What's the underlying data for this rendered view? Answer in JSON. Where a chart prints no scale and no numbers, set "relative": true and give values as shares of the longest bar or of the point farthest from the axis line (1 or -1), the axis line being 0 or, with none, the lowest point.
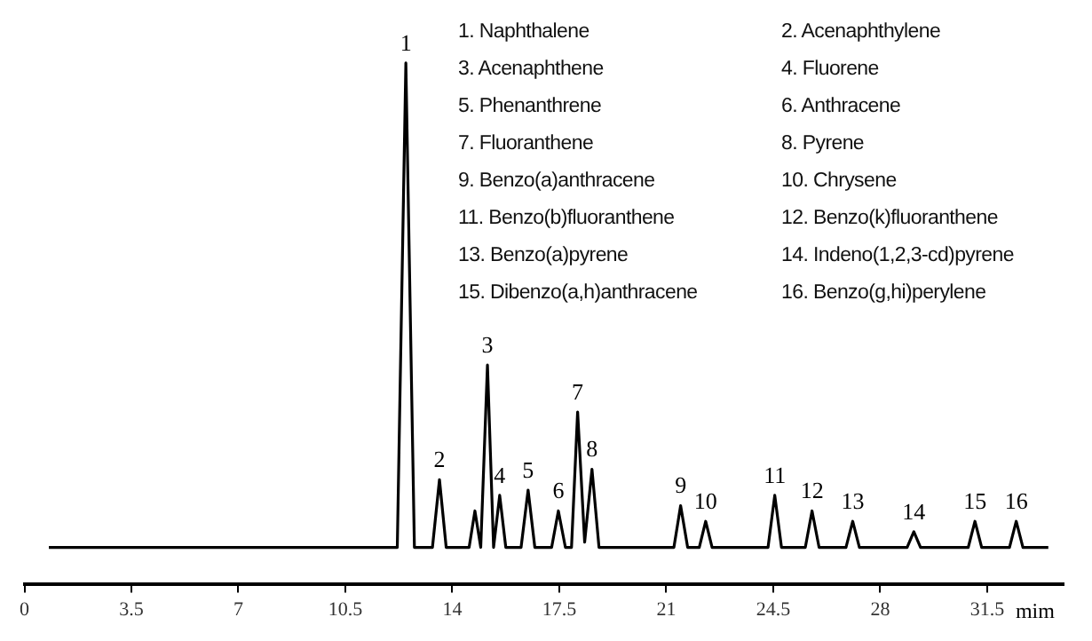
{
  "chart_data": {
    "type": "line",
    "relative": true,
    "xlabel": "mim",
    "xlim": [
      0,
      34
    ],
    "xticks": [
      0,
      3.5,
      7,
      10.5,
      14,
      17.5,
      21,
      24.5,
      28,
      31.5
    ],
    "grid": false,
    "legend": false,
    "marker": "none",
    "line_style": "solid",
    "series": [
      {
        "color": "#000000",
        "x": [
          0.8,
          12.2,
          12.48,
          12.76,
          13.35,
          13.58,
          13.8,
          14.55,
          14.74,
          14.93,
          15.15,
          15.35,
          15.55,
          15.75,
          16.25,
          16.48,
          16.7,
          17.25,
          17.47,
          17.7,
          17.9,
          18.1,
          18.33,
          18.57,
          18.8,
          21.25,
          21.47,
          21.7,
          22.08,
          22.29,
          22.5,
          24.33,
          24.55,
          24.77,
          25.55,
          25.77,
          26.0,
          26.88,
          27.1,
          27.32,
          28.88,
          29.1,
          29.32,
          30.88,
          31.1,
          31.32,
          32.23,
          32.45,
          32.67,
          33.5
        ],
        "values": [
          0.07,
          0.07,
          1.0,
          0.07,
          0.07,
          0.2,
          0.07,
          0.07,
          0.14,
          0.07,
          0.42,
          0.07,
          0.17,
          0.07,
          0.07,
          0.18,
          0.07,
          0.07,
          0.14,
          0.07,
          0.07,
          0.33,
          0.08,
          0.22,
          0.07,
          0.07,
          0.15,
          0.07,
          0.07,
          0.12,
          0.07,
          0.07,
          0.17,
          0.07,
          0.07,
          0.14,
          0.07,
          0.07,
          0.12,
          0.07,
          0.07,
          0.1,
          0.07,
          0.07,
          0.12,
          0.07,
          0.07,
          0.12,
          0.07,
          0.07
        ]
      }
    ],
    "annotations": [
      {
        "text": "1",
        "x": 12.48,
        "y": 1.0
      },
      {
        "text": "2",
        "x": 13.58,
        "y": 0.2
      },
      {
        "text": "3",
        "x": 15.15,
        "y": 0.42
      },
      {
        "text": "4",
        "x": 15.55,
        "y": 0.17
      },
      {
        "text": "5",
        "x": 16.48,
        "y": 0.18
      },
      {
        "text": "6",
        "x": 17.47,
        "y": 0.14
      },
      {
        "text": "7",
        "x": 18.1,
        "y": 0.33
      },
      {
        "text": "8",
        "x": 18.57,
        "y": 0.22
      },
      {
        "text": "9",
        "x": 21.47,
        "y": 0.15
      },
      {
        "text": "10",
        "x": 22.29,
        "y": 0.12
      },
      {
        "text": "11",
        "x": 24.55,
        "y": 0.17
      },
      {
        "text": "12",
        "x": 25.77,
        "y": 0.14
      },
      {
        "text": "13",
        "x": 27.1,
        "y": 0.12
      },
      {
        "text": "14",
        "x": 29.1,
        "y": 0.1
      },
      {
        "text": "15",
        "x": 31.1,
        "y": 0.12
      },
      {
        "text": "16",
        "x": 32.45,
        "y": 0.12
      },
      "1. Naphthalene",
      "2. Acenaphthylene",
      "3. Acenaphthene",
      "4. Fluorene",
      "5. Phenanthrene",
      "6. Anthracene",
      "7. Fluoranthene",
      "8. Pyrene",
      "9. Benzo(a)anthracene",
      "10. Chrysene",
      "11. Benzo(b)fluoranthene",
      "12. Benzo(k)fluoranthene",
      "13. Benzo(a)pyrene",
      "14. Indeno(1,2,3-cd)pyrene",
      "15. Dibenzo(a,h)anthracene",
      "16. Benzo(g,hi)perylene"
    ]
  }
}
